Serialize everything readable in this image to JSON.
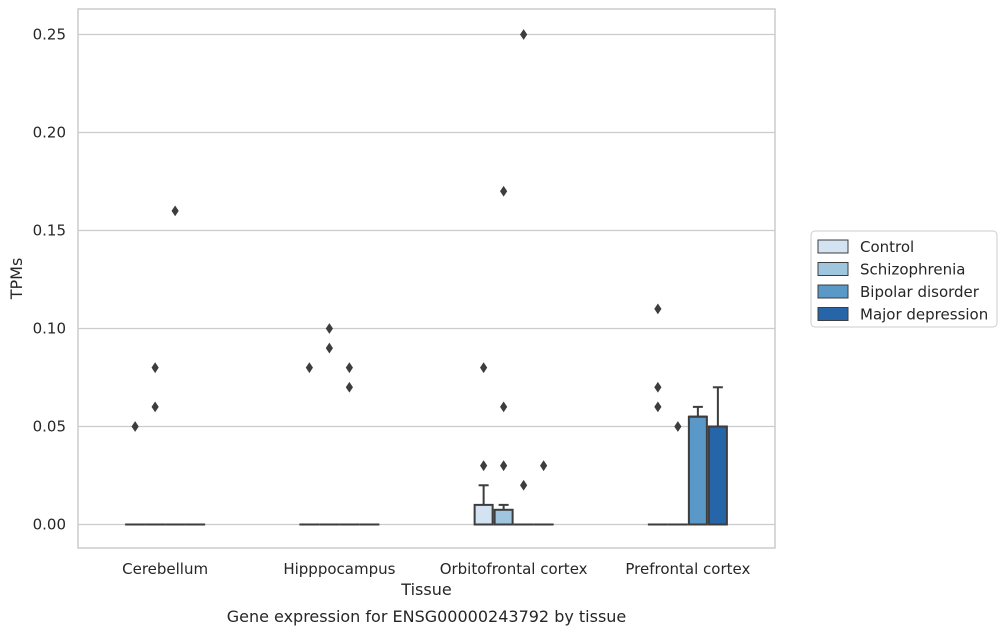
{
  "chart_data": {
    "type": "box",
    "title": "",
    "caption": "Gene expression for ENSG00000243792 by tissue",
    "xlabel": "Tissue",
    "ylabel": "TPMs",
    "ylim": [
      -0.012,
      0.263
    ],
    "yticks": [
      0.0,
      0.05,
      0.1,
      0.15,
      0.2,
      0.25
    ],
    "ytick_labels": [
      "0.00",
      "0.05",
      "0.10",
      "0.15",
      "0.20",
      "0.25"
    ],
    "grid": "horizontal",
    "legend_position": "right",
    "categories": [
      "Cerebellum",
      "Hipppocampus",
      "Orbitofrontal cortex",
      "Prefrontal cortex"
    ],
    "series": [
      {
        "name": "Control",
        "color": "#d4e3f1",
        "boxes": [
          {
            "q1": 0,
            "median": 0,
            "q3": 0,
            "whisker_low": 0,
            "whisker_high": 0,
            "outliers": [
              0.05
            ]
          },
          {
            "q1": 0,
            "median": 0,
            "q3": 0,
            "whisker_low": 0,
            "whisker_high": 0,
            "outliers": [
              0.08
            ]
          },
          {
            "q1": 0,
            "median": 0,
            "q3": 0.01,
            "whisker_low": 0,
            "whisker_high": 0.02,
            "outliers": [
              0.03,
              0.08
            ]
          },
          {
            "q1": 0,
            "median": 0,
            "q3": 0,
            "whisker_low": 0,
            "whisker_high": 0,
            "outliers": [
              0.06,
              0.07,
              0.11
            ]
          }
        ]
      },
      {
        "name": "Schizophrenia",
        "color": "#a0c5df",
        "boxes": [
          {
            "q1": 0,
            "median": 0,
            "q3": 0,
            "whisker_low": 0,
            "whisker_high": 0,
            "outliers": [
              0.06,
              0.08
            ]
          },
          {
            "q1": 0,
            "median": 0,
            "q3": 0,
            "whisker_low": 0,
            "whisker_high": 0,
            "outliers": [
              0.09,
              0.1
            ]
          },
          {
            "q1": 0,
            "median": 0,
            "q3": 0.0075,
            "whisker_low": 0,
            "whisker_high": 0.01,
            "outliers": [
              0.03,
              0.06,
              0.17
            ]
          },
          {
            "q1": 0,
            "median": 0,
            "q3": 0,
            "whisker_low": 0,
            "whisker_high": 0,
            "outliers": [
              0.05
            ]
          }
        ]
      },
      {
        "name": "Bipolar disorder",
        "color": "#5a98c7",
        "boxes": [
          {
            "q1": 0,
            "median": 0,
            "q3": 0,
            "whisker_low": 0,
            "whisker_high": 0,
            "outliers": [
              0.16
            ]
          },
          {
            "q1": 0,
            "median": 0,
            "q3": 0,
            "whisker_low": 0,
            "whisker_high": 0,
            "outliers": [
              0.07,
              0.08
            ]
          },
          {
            "q1": 0,
            "median": 0,
            "q3": 0,
            "whisker_low": 0,
            "whisker_high": 0,
            "outliers": [
              0.02,
              0.25
            ]
          },
          {
            "q1": 0,
            "median": 0.055,
            "q3": 0.055,
            "whisker_low": 0,
            "whisker_high": 0.06,
            "outliers": []
          }
        ]
      },
      {
        "name": "Major depression",
        "color": "#2565a8",
        "boxes": [
          {
            "q1": 0,
            "median": 0,
            "q3": 0,
            "whisker_low": 0,
            "whisker_high": 0,
            "outliers": []
          },
          {
            "q1": 0,
            "median": 0,
            "q3": 0,
            "whisker_low": 0,
            "whisker_high": 0,
            "outliers": []
          },
          {
            "q1": 0,
            "median": 0,
            "q3": 0,
            "whisker_low": 0,
            "whisker_high": 0,
            "outliers": [
              0.03
            ]
          },
          {
            "q1": 0,
            "median": 0.05,
            "q3": 0.05,
            "whisker_low": 0,
            "whisker_high": 0.07,
            "outliers": []
          }
        ]
      }
    ]
  }
}
